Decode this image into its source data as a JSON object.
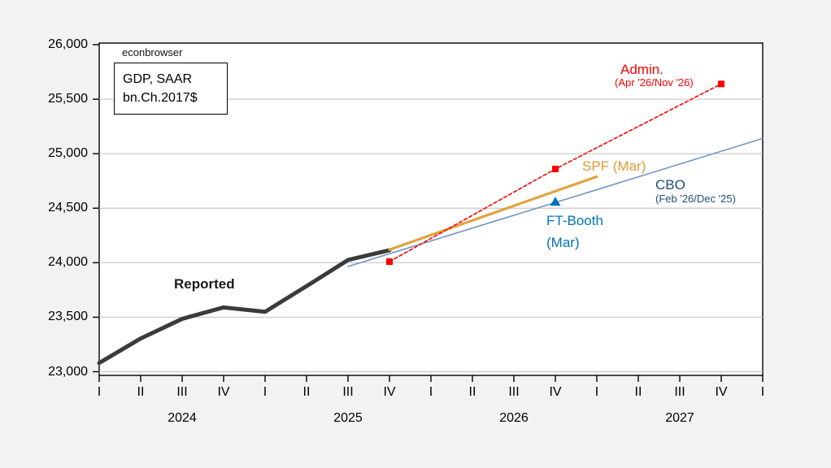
{
  "watermark": "econbrowser",
  "legend_box": {
    "line1": "GDP, SAAR",
    "line2": "bn.Ch.2017$"
  },
  "annotations": {
    "reported": {
      "text": "Reported",
      "color": "#1a1a1a"
    },
    "admin": {
      "title": "Admin.",
      "subtitle": "(Apr '26/Nov '26)",
      "color": "#fe0000"
    },
    "spf": {
      "text": "SPF (Mar)",
      "color": "#dd9a33"
    },
    "cbo": {
      "title": "CBO",
      "subtitle": "(Feb '26/Dec '25)",
      "color": "#1f4e79"
    },
    "ft_booth": {
      "line1": "FT-Booth",
      "line2": "(Mar)",
      "color": "#0070c0"
    }
  },
  "chart_data": {
    "type": "line",
    "title": "GDP, SAAR bn.Ch.2017$",
    "xlabel": "",
    "ylabel": "",
    "grid": "horizontal",
    "outer_bg": "#f2f2f2",
    "plot_bg": "#ffffff",
    "gridline_color": "#c6c6c6",
    "x_axis": {
      "quarter_labels": [
        "I",
        "II",
        "III",
        "IV",
        "I",
        "II",
        "III",
        "IV",
        "I",
        "II",
        "III",
        "IV",
        "I",
        "II",
        "III",
        "IV",
        "I"
      ],
      "year_labels": [
        {
          "year": "2024",
          "quarter_index": 2
        },
        {
          "year": "2025",
          "quarter_index": 6
        },
        {
          "year": "2026",
          "quarter_index": 10
        },
        {
          "year": "2027",
          "quarter_index": 14
        }
      ]
    },
    "y_axis": {
      "min": 22950,
      "max": 26000,
      "tick_interval": 500,
      "tick_values": [
        23000,
        23500,
        24000,
        24500,
        25000,
        25500,
        26000
      ],
      "tick_labels": [
        "23,000",
        "23,500",
        "24,000",
        "24,500",
        "25,000",
        "25,500",
        "26,000"
      ]
    },
    "series": [
      {
        "name": "Reported",
        "type": "line",
        "color": "#3b3b3b",
        "width": 5,
        "dash": "",
        "marker": "none",
        "x": [
          0,
          1,
          2,
          3,
          4,
          5,
          6,
          7
        ],
        "x_labels": [
          "2024Q1",
          "2024Q2",
          "2024Q3",
          "2024Q4",
          "2025Q1",
          "2025Q2",
          "2025Q3",
          "2025Q4"
        ],
        "values": [
          23080,
          23305,
          23485,
          23590,
          23550,
          23785,
          24025,
          24115
        ]
      },
      {
        "name": "CBO (Feb '26/Dec '25)",
        "type": "line",
        "color": "#6e96c3",
        "width": 1.6,
        "dash": "",
        "marker": "none",
        "x": [
          6,
          16
        ],
        "x_labels": [
          "2025Q3",
          "2028Q1"
        ],
        "values": [
          23965,
          25140
        ]
      },
      {
        "name": "SPF (Mar)",
        "type": "line",
        "color": "#e0a33e",
        "width": 3.2,
        "dash": "",
        "marker": "none",
        "x": [
          7,
          12
        ],
        "x_labels": [
          "2025Q4",
          "2027Q1"
        ],
        "values": [
          24120,
          24790
        ]
      },
      {
        "name": "Admin. (Apr '26/Nov '26)",
        "type": "line",
        "color": "#fe0000",
        "width": 1.6,
        "dash": "4 3",
        "marker": "square",
        "x": [
          7,
          11,
          15
        ],
        "x_labels": [
          "2025Q4",
          "2026Q4",
          "2027Q4"
        ],
        "values": [
          24010,
          24860,
          25640
        ]
      },
      {
        "name": "FT-Booth (Mar)",
        "type": "scatter",
        "color": "#0070c0",
        "width": 0,
        "dash": "",
        "marker": "triangle",
        "x": [
          11
        ],
        "x_labels": [
          "2026Q4"
        ],
        "values": [
          24560
        ]
      }
    ]
  }
}
